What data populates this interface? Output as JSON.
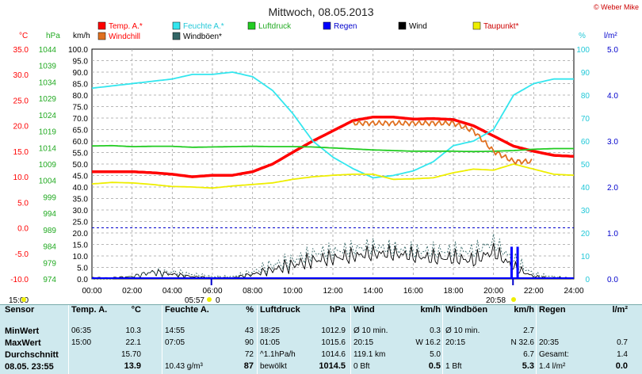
{
  "title": "Mittwoch, 08.05.2013",
  "copyright": "© Weber Mike",
  "colors": {
    "temp": "#ff0000",
    "humidity": "#33e6ee",
    "pressure": "#22cc22",
    "rain": "#0000ff",
    "wind": "#000000",
    "dewpoint": "#eeee00",
    "windchill": "#e07020",
    "gust": "#336666",
    "grid": "#a0a0a0",
    "table_bg": "#cfe9ee"
  },
  "legend": [
    {
      "label": "Temp. A.*",
      "color": "#ff0000"
    },
    {
      "label": "Feuchte A.*",
      "color": "#33e6ee"
    },
    {
      "label": "Luftdruck",
      "color": "#22cc22"
    },
    {
      "label": "Regen",
      "color": "#0000ff"
    },
    {
      "label": "Wind",
      "color": "#000000"
    },
    {
      "label": "Taupunkt*",
      "color": "#eeee00"
    },
    {
      "label": "Windchill",
      "color": "#e07020"
    },
    {
      "label": "Windböen*",
      "color": "#336666"
    }
  ],
  "axes": {
    "temp": {
      "unit": "°C",
      "ticks": [
        "35.0",
        "30.0",
        "25.0",
        "20.0",
        "15.0",
        "10.0",
        "5.0",
        "0.0",
        "-5.0",
        "-10.0"
      ]
    },
    "pressure": {
      "unit": "hPa",
      "ticks": [
        "1044",
        "1039",
        "1034",
        "1029",
        "1024",
        "1019",
        "1014",
        "1009",
        "1004",
        "999",
        "994",
        "989",
        "984",
        "979",
        "974"
      ]
    },
    "wind": {
      "unit": "km/h",
      "ticks": [
        "100.0",
        "95.0",
        "90.0",
        "85.0",
        "80.0",
        "75.0",
        "70.0",
        "65.0",
        "60.0",
        "55.0",
        "50.0",
        "45.0",
        "40.0",
        "35.0",
        "30.0",
        "25.0",
        "20.0",
        "15.0",
        "10.0",
        "5.0",
        "0.0"
      ]
    },
    "humidity": {
      "unit": "%",
      "ticks": [
        "100",
        "90",
        "80",
        "70",
        "60",
        "50",
        "40",
        "30",
        "20",
        "10",
        "0"
      ]
    },
    "rain": {
      "unit": "l/m²",
      "ticks": [
        "5.0",
        "4.0",
        "3.0",
        "2.0",
        "1.0",
        "0.0"
      ]
    },
    "x_ticks": [
      "00:00",
      "02:00",
      "04:00",
      "06:00",
      "08:00",
      "10:00",
      "12:00",
      "14:00",
      "16:00",
      "18:00",
      "20:00",
      "22:00",
      "24:00"
    ]
  },
  "markers": {
    "left_time": "15:00",
    "sunrise": "05:57",
    "sunrise_sym": "0",
    "sunset": "20:58"
  },
  "chart_data": {
    "type": "line",
    "x_unit": "hour",
    "x": [
      0,
      1,
      2,
      3,
      4,
      5,
      6,
      7,
      8,
      9,
      10,
      11,
      12,
      13,
      14,
      15,
      16,
      17,
      18,
      19,
      20,
      21,
      22,
      23,
      24
    ],
    "series": [
      {
        "name": "Temp. A.*",
        "axis": "temp",
        "values": [
          11,
          11,
          11,
          10.8,
          10.5,
          10,
          10.3,
          10.3,
          11,
          12.5,
          14.8,
          17,
          19,
          21,
          21.7,
          21.7,
          21.3,
          21.4,
          21.2,
          20,
          18,
          16,
          15,
          14.2,
          14
        ]
      },
      {
        "name": "Feuchte A.*",
        "axis": "humidity",
        "values": [
          83,
          84,
          85,
          86,
          87,
          89,
          89,
          90,
          88,
          82,
          72,
          60,
          53,
          48,
          44,
          45,
          47,
          51,
          58,
          60,
          65,
          80,
          85,
          87,
          87
        ]
      },
      {
        "name": "Luftdruck",
        "axis": "pressure",
        "values": [
          1014.5,
          1014.6,
          1014.3,
          1014.4,
          1014.4,
          1014.1,
          1014.2,
          1014.3,
          1014.4,
          1014.3,
          1014.3,
          1014.2,
          1013.9,
          1013.6,
          1013.3,
          1013.1,
          1012.9,
          1012.9,
          1012.9,
          1012.8,
          1012.9,
          1013.1,
          1013.5,
          1013.7,
          1013.7
        ]
      },
      {
        "name": "Taupunkt*",
        "axis": "temp",
        "values": [
          8.6,
          8.9,
          8.8,
          8.5,
          8.1,
          8.0,
          7.8,
          8.2,
          8.5,
          8.8,
          9.5,
          10,
          10.3,
          10.5,
          10.5,
          9.5,
          9.6,
          9.8,
          10.8,
          11.5,
          11.3,
          12.5,
          11.5,
          10.5,
          10.3
        ]
      },
      {
        "name": "Windchill",
        "axis": "temp",
        "values": [
          null,
          null,
          null,
          null,
          null,
          null,
          null,
          null,
          null,
          null,
          null,
          null,
          null,
          20.5,
          20.5,
          20.5,
          20.5,
          20.5,
          20.5,
          19,
          15,
          13,
          13,
          null,
          null
        ]
      },
      {
        "name": "Wind",
        "axis": "wind",
        "values": [
          0.5,
          0.5,
          1,
          3,
          2,
          1,
          0.5,
          0.5,
          2,
          4,
          6,
          8,
          9,
          10,
          11,
          11,
          10,
          9,
          9,
          8,
          12,
          5,
          1,
          0.5,
          0.5
        ]
      },
      {
        "name": "Windböen*",
        "axis": "wind",
        "values": [
          0,
          0,
          1,
          3,
          3,
          2,
          1,
          1,
          3,
          6,
          8,
          11,
          12,
          13,
          14,
          13,
          12,
          12,
          12,
          12,
          16,
          8,
          2,
          1,
          0
        ]
      }
    ],
    "rain_bars": [
      {
        "x": 20.9,
        "value": 0.7
      },
      {
        "x": 21.2,
        "value": 0.7
      }
    ],
    "xlim": [
      0,
      24
    ],
    "ylim_temp": [
      -10,
      35
    ],
    "ylim_pressure": [
      974,
      1044
    ],
    "ylim_wind": [
      0,
      100
    ],
    "ylim_humidity": [
      0,
      100
    ],
    "ylim_rain": [
      0,
      5
    ],
    "reference_line": {
      "axis": "temp",
      "value": 0
    }
  },
  "table": {
    "sensor_col": {
      "header": "Sensor",
      "rows": [
        "MinWert",
        "MaxWert",
        "Durchschnitt"
      ],
      "last": "08.05. 23:55"
    },
    "temp": {
      "header": "Temp. A.",
      "unit": "°C",
      "rows": [
        [
          "06:35",
          "10.3"
        ],
        [
          "15:00",
          "22.1"
        ],
        [
          "",
          "15.70"
        ]
      ],
      "last": [
        "",
        "13.9"
      ]
    },
    "humid": {
      "header": "Feuchte A.",
      "unit": "%",
      "rows": [
        [
          "14:55",
          "43"
        ],
        [
          "07:05",
          "90"
        ],
        [
          "",
          "72"
        ]
      ],
      "last": [
        "10.43 g/m³",
        "87"
      ]
    },
    "press": {
      "header": "Luftdruck",
      "unit": "hPa",
      "rows": [
        [
          "18:25",
          "1012.9"
        ],
        [
          "01:05",
          "1015.6"
        ],
        [
          "^1.1hPa/h",
          "1014.6"
        ]
      ],
      "last": [
        "bewölkt",
        "1014.5"
      ]
    },
    "wind": {
      "header": "Wind",
      "unit": "km/h",
      "rows": [
        [
          "Ø 10 min.",
          "0.3"
        ],
        [
          "20:15",
          "W 16.2"
        ],
        [
          "119.1 km",
          "5.0"
        ]
      ],
      "last": [
        "0 Bft",
        "0.5"
      ]
    },
    "gust": {
      "header": "Windböen",
      "unit": "km/h",
      "rows": [
        [
          "Ø 10 min.",
          "2.7"
        ],
        [
          "20:15",
          "N 32.6"
        ],
        [
          "",
          "6.7"
        ]
      ],
      "last": [
        "1 Bft",
        "5.3"
      ]
    },
    "rain": {
      "header": "Regen",
      "unit": "l/m²",
      "rows": [
        [
          "",
          ""
        ],
        [
          "20:35",
          "0.7"
        ],
        [
          "Gesamt:",
          "1.4"
        ]
      ],
      "last": [
        "1.4 l/m²",
        "0.0"
      ]
    }
  }
}
